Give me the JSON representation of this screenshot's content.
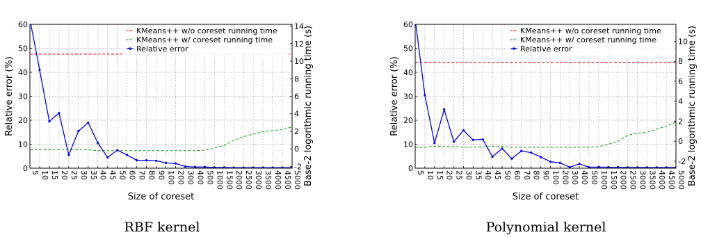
{
  "chart_data": [
    {
      "type": "line",
      "caption": "RBF kernel",
      "title": "",
      "xlabel": "Size of coreset",
      "ylabel": "Relative error (%)",
      "ylabel_right": "Base-2 logorithmic running time (s)",
      "categories": [
        "5",
        "10",
        "15",
        "20",
        "25",
        "30",
        "35",
        "40",
        "45",
        "50",
        "60",
        "70",
        "80",
        "90",
        "100",
        "200",
        "300",
        "400",
        "500",
        "1000",
        "1500",
        "2000",
        "2500",
        "3000",
        "3500",
        "4000",
        "4500",
        "5000"
      ],
      "ylim": [
        0,
        60
      ],
      "y_ticks": [
        "0",
        "10",
        "20",
        "30",
        "40",
        "50",
        "60"
      ],
      "y2lim": [
        -2.2,
        14.2
      ],
      "y2_ticks": [
        "-2",
        "0",
        "2",
        "4",
        "6",
        "8",
        "10",
        "12",
        "14"
      ],
      "grid": true,
      "legend_position": "top-right",
      "series": [
        {
          "name": "KMeans++ w/o coreset running time",
          "axis": "right",
          "style": "dashed",
          "color": "#e31a1c",
          "values": [
            10.8,
            10.8,
            10.8,
            10.8,
            10.8,
            10.8,
            10.8,
            10.8,
            10.8,
            10.8,
            10.8,
            10.8,
            10.8,
            10.8,
            10.8,
            10.8,
            10.8,
            10.8,
            10.8,
            10.8,
            10.8,
            10.8,
            10.8,
            10.8,
            10.8,
            10.8,
            10.8,
            10.8
          ]
        },
        {
          "name": "KMeans++ w/ coreset running time",
          "axis": "right",
          "style": "dashed",
          "color": "#2ca02c",
          "values": [
            -0.1,
            -0.1,
            -0.1,
            -0.1,
            -0.1,
            -0.1,
            -0.1,
            -0.2,
            -0.2,
            -0.2,
            -0.2,
            -0.2,
            -0.2,
            -0.2,
            -0.2,
            -0.2,
            -0.2,
            -0.2,
            -0.15,
            0.1,
            0.4,
            1.0,
            1.4,
            1.7,
            1.95,
            2.1,
            2.2,
            2.5
          ]
        },
        {
          "name": "Relative error",
          "axis": "left",
          "style": "solid-marker",
          "color": "#0000dd",
          "values": [
            62,
            41,
            19.5,
            23,
            5.5,
            15.5,
            19,
            10.5,
            4.5,
            7.5,
            5.5,
            3.3,
            3.3,
            3.1,
            2.2,
            2.0,
            0.7,
            0.5,
            0.5,
            0.3,
            0.3,
            0.2,
            0.2,
            0.2,
            0.2,
            0.2,
            0.2,
            0.2
          ]
        }
      ]
    },
    {
      "type": "line",
      "caption": "Polynomial kernel",
      "title": "",
      "xlabel": "Size of coreset",
      "ylabel": "Relative error (%)",
      "ylabel_right": "Base-2 logorithmic running time (s)",
      "categories": [
        "5",
        "10",
        "15",
        "20",
        "25",
        "30",
        "35",
        "40",
        "45",
        "50",
        "60",
        "70",
        "80",
        "90",
        "100",
        "200",
        "300",
        "400",
        "500",
        "1000",
        "1500",
        "2000",
        "2500",
        "3000",
        "3500",
        "4000",
        "4500",
        "5000"
      ],
      "ylim": [
        0,
        60
      ],
      "y_ticks": [
        "0",
        "10",
        "20",
        "30",
        "40",
        "50",
        "60"
      ],
      "y2lim": [
        -2.7,
        11.7
      ],
      "y2_ticks": [
        "-2",
        "0",
        "2",
        "4",
        "6",
        "8",
        "10"
      ],
      "grid": true,
      "legend_position": "top-right",
      "series": [
        {
          "name": "KMeans++ w/o coreset running time",
          "axis": "right",
          "style": "dashed",
          "color": "#e31a1c",
          "values": [
            7.9,
            7.9,
            7.9,
            7.9,
            7.9,
            7.9,
            7.9,
            7.9,
            7.9,
            7.9,
            7.9,
            7.9,
            7.9,
            7.9,
            7.9,
            7.9,
            7.9,
            7.9,
            7.9,
            7.9,
            7.9,
            7.9,
            7.9,
            7.9,
            7.9,
            7.9,
            7.9,
            7.9
          ]
        },
        {
          "name": "KMeans++ w/ coreset running time",
          "axis": "right",
          "style": "dashed",
          "color": "#2ca02c",
          "values": [
            -0.6,
            -0.6,
            -0.5,
            -0.5,
            -0.55,
            -0.6,
            -0.6,
            -0.55,
            -0.5,
            -0.5,
            -0.6,
            -0.6,
            -0.6,
            -0.6,
            -0.6,
            -0.6,
            -0.6,
            -0.6,
            -0.6,
            -0.55,
            -0.3,
            0.0,
            0.6,
            0.8,
            0.9,
            1.2,
            1.5,
            1.9
          ]
        },
        {
          "name": "Relative error",
          "axis": "left",
          "style": "solid-marker",
          "color": "#0000dd",
          "values": [
            62,
            30.5,
            10.5,
            24.5,
            11,
            15.8,
            11.8,
            12,
            4.8,
            8.2,
            4,
            7.2,
            6.5,
            4.7,
            2.7,
            2.2,
            0.4,
            1.8,
            0.4,
            0.5,
            0.4,
            0.4,
            0.3,
            0.3,
            0.3,
            0.3,
            0.3,
            0.3
          ]
        }
      ]
    }
  ]
}
